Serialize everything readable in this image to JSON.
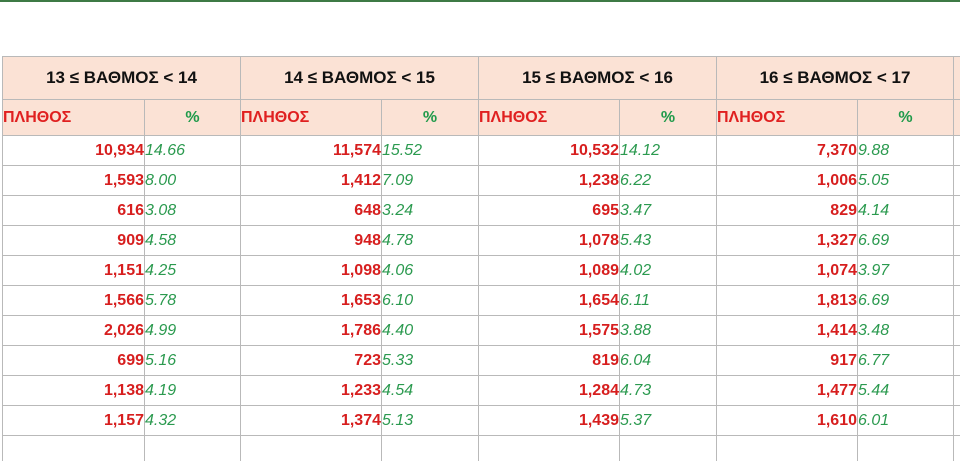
{
  "colors": {
    "header_fill": "#fbe2d5",
    "count_text": "#d71e1e",
    "percent_text": "#2b9a4f",
    "top_rule": "#3d7a45"
  },
  "table": {
    "groups": [
      {
        "title": "13 ≤ ΒΑΘΜΟΣ < 14",
        "count_label": "ΠΛΗΘΟΣ",
        "percent_label": "%",
        "rows": [
          {
            "count": "10,934",
            "percent": "14.66"
          },
          {
            "count": "1,593",
            "percent": "8.00"
          },
          {
            "count": "616",
            "percent": "3.08"
          },
          {
            "count": "909",
            "percent": "4.58"
          },
          {
            "count": "1,151",
            "percent": "4.25"
          },
          {
            "count": "1,566",
            "percent": "5.78"
          },
          {
            "count": "2,026",
            "percent": "4.99"
          },
          {
            "count": "699",
            "percent": "5.16"
          },
          {
            "count": "1,138",
            "percent": "4.19"
          },
          {
            "count": "1,157",
            "percent": "4.32"
          }
        ]
      },
      {
        "title": "14 ≤ ΒΑΘΜΟΣ < 15",
        "count_label": "ΠΛΗΘΟΣ",
        "percent_label": "%",
        "rows": [
          {
            "count": "11,574",
            "percent": "15.52"
          },
          {
            "count": "1,412",
            "percent": "7.09"
          },
          {
            "count": "648",
            "percent": "3.24"
          },
          {
            "count": "948",
            "percent": "4.78"
          },
          {
            "count": "1,098",
            "percent": "4.06"
          },
          {
            "count": "1,653",
            "percent": "6.10"
          },
          {
            "count": "1,786",
            "percent": "4.40"
          },
          {
            "count": "723",
            "percent": "5.33"
          },
          {
            "count": "1,233",
            "percent": "4.54"
          },
          {
            "count": "1,374",
            "percent": "5.13"
          }
        ]
      },
      {
        "title": "15 ≤ ΒΑΘΜΟΣ < 16",
        "count_label": "ΠΛΗΘΟΣ",
        "percent_label": "%",
        "rows": [
          {
            "count": "10,532",
            "percent": "14.12"
          },
          {
            "count": "1,238",
            "percent": "6.22"
          },
          {
            "count": "695",
            "percent": "3.47"
          },
          {
            "count": "1,078",
            "percent": "5.43"
          },
          {
            "count": "1,089",
            "percent": "4.02"
          },
          {
            "count": "1,654",
            "percent": "6.11"
          },
          {
            "count": "1,575",
            "percent": "3.88"
          },
          {
            "count": "819",
            "percent": "6.04"
          },
          {
            "count": "1,284",
            "percent": "4.73"
          },
          {
            "count": "1,439",
            "percent": "5.37"
          }
        ]
      },
      {
        "title": "16 ≤ ΒΑΘΜΟΣ < 17",
        "count_label": "ΠΛΗΘΟΣ",
        "percent_label": "%",
        "rows": [
          {
            "count": "7,370",
            "percent": "9.88"
          },
          {
            "count": "1,006",
            "percent": "5.05"
          },
          {
            "count": "829",
            "percent": "4.14"
          },
          {
            "count": "1,327",
            "percent": "6.69"
          },
          {
            "count": "1,074",
            "percent": "3.97"
          },
          {
            "count": "1,813",
            "percent": "6.69"
          },
          {
            "count": "1,414",
            "percent": "3.48"
          },
          {
            "count": "917",
            "percent": "6.77"
          },
          {
            "count": "1,477",
            "percent": "5.44"
          },
          {
            "count": "1,610",
            "percent": "6.01"
          }
        ]
      }
    ]
  }
}
